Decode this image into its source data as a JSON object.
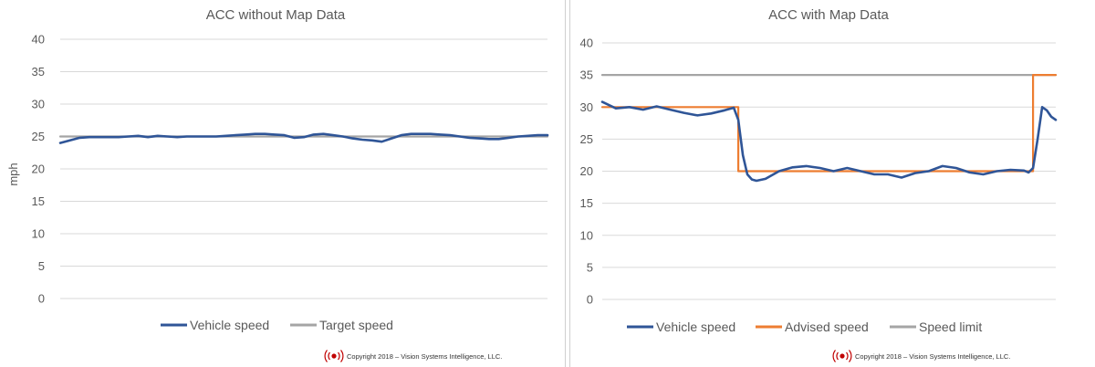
{
  "charts": [
    {
      "title": "ACC without Map Data",
      "ylabel": "mph",
      "yticks": [
        "40",
        "35",
        "30",
        "25",
        "20",
        "15",
        "10",
        "5",
        "0"
      ],
      "legend": [
        "Vehicle speed",
        "Target speed"
      ],
      "copyright": "Copyright 2018 – Vision Systems Intelligence, LLC."
    },
    {
      "title": "ACC with Map Data",
      "ylabel": "",
      "yticks": [
        "40",
        "35",
        "30",
        "25",
        "20",
        "15",
        "10",
        "5",
        "0"
      ],
      "legend": [
        "Vehicle speed",
        "Advised speed",
        "Speed limit"
      ],
      "copyright": "Copyright 2018 – Vision Systems Intelligence, LLC."
    }
  ],
  "colors": {
    "vehicle": "#2F5597",
    "target": "#A5A5A5",
    "advised": "#ED7D31",
    "limit": "#A5A5A5",
    "grid": "#D9D9D9",
    "logo": "#C00000"
  },
  "chart_data": [
    {
      "type": "line",
      "title": "ACC without Map Data",
      "ylabel": "mph",
      "ylim": [
        0,
        40
      ],
      "grid": true,
      "legend_position": "bottom",
      "x": [
        0,
        2,
        4,
        6,
        8,
        10,
        12,
        14,
        16,
        18,
        20,
        22,
        24,
        26,
        28,
        30,
        32,
        34,
        36,
        38,
        40,
        42,
        44,
        46,
        48,
        50,
        52,
        54,
        56,
        58,
        60,
        62,
        64,
        66,
        68,
        70,
        72,
        74,
        76,
        78,
        80,
        82,
        84,
        86,
        88,
        90,
        92,
        94,
        96,
        98,
        100
      ],
      "series": [
        {
          "name": "Vehicle speed",
          "values": [
            24.0,
            24.4,
            24.8,
            24.9,
            24.9,
            24.9,
            24.9,
            25.0,
            25.1,
            24.9,
            25.1,
            25.0,
            24.9,
            25.0,
            25.0,
            25.0,
            25.0,
            25.1,
            25.2,
            25.3,
            25.4,
            25.4,
            25.3,
            25.2,
            24.8,
            24.9,
            25.3,
            25.4,
            25.2,
            25.0,
            24.7,
            24.5,
            24.4,
            24.2,
            24.7,
            25.2,
            25.4,
            25.4,
            25.4,
            25.3,
            25.2,
            25.0,
            24.8,
            24.7,
            24.6,
            24.6,
            24.8,
            25.0,
            25.1,
            25.2,
            25.2
          ]
        },
        {
          "name": "Target speed",
          "values": [
            25,
            25,
            25,
            25,
            25,
            25,
            25,
            25,
            25,
            25,
            25,
            25,
            25,
            25,
            25,
            25,
            25,
            25,
            25,
            25,
            25,
            25,
            25,
            25,
            25,
            25,
            25,
            25,
            25,
            25,
            25,
            25,
            25,
            25,
            25,
            25,
            25,
            25,
            25,
            25,
            25,
            25,
            25,
            25,
            25,
            25,
            25,
            25,
            25,
            25,
            25
          ]
        }
      ]
    },
    {
      "type": "line",
      "title": "ACC with Map Data",
      "ylabel": "",
      "ylim": [
        0,
        40
      ],
      "grid": true,
      "legend_position": "bottom",
      "x": [
        0,
        3,
        6,
        9,
        12,
        15,
        18,
        21,
        24,
        27,
        29,
        30,
        31,
        32,
        33,
        34,
        36,
        39,
        42,
        45,
        48,
        51,
        54,
        57,
        60,
        63,
        66,
        69,
        72,
        75,
        78,
        81,
        84,
        87,
        90,
        93,
        94,
        95,
        96,
        97,
        98,
        99,
        100
      ],
      "series": [
        {
          "name": "Vehicle speed",
          "values": [
            30.8,
            29.8,
            30.0,
            29.6,
            30.1,
            29.6,
            29.1,
            28.7,
            29.0,
            29.5,
            29.9,
            28.0,
            22.5,
            19.5,
            18.7,
            18.5,
            18.8,
            20.0,
            20.6,
            20.8,
            20.5,
            20.0,
            20.5,
            20.0,
            19.5,
            19.5,
            19.0,
            19.7,
            20.0,
            20.8,
            20.5,
            19.8,
            19.5,
            20.0,
            20.2,
            20.1,
            19.8,
            20.5,
            25.0,
            30.0,
            29.5,
            28.5,
            28.0
          ]
        },
        {
          "name": "Advised speed",
          "values": [
            30,
            30,
            30,
            30,
            30,
            30,
            30,
            30,
            30,
            30,
            30,
            20,
            20,
            20,
            20,
            20,
            20,
            20,
            20,
            20,
            20,
            20,
            20,
            20,
            20,
            20,
            20,
            20,
            20,
            20,
            20,
            20,
            20,
            20,
            20,
            20,
            20,
            35,
            35,
            35,
            35,
            35,
            35
          ]
        },
        {
          "name": "Speed limit",
          "values": [
            35,
            35,
            35,
            35,
            35,
            35,
            35,
            35,
            35,
            35,
            35,
            35,
            35,
            35,
            35,
            35,
            35,
            35,
            35,
            35,
            35,
            35,
            35,
            35,
            35,
            35,
            35,
            35,
            35,
            35,
            35,
            35,
            35,
            35,
            35,
            35,
            35,
            35,
            35,
            35,
            35,
            35,
            35
          ]
        }
      ]
    }
  ]
}
